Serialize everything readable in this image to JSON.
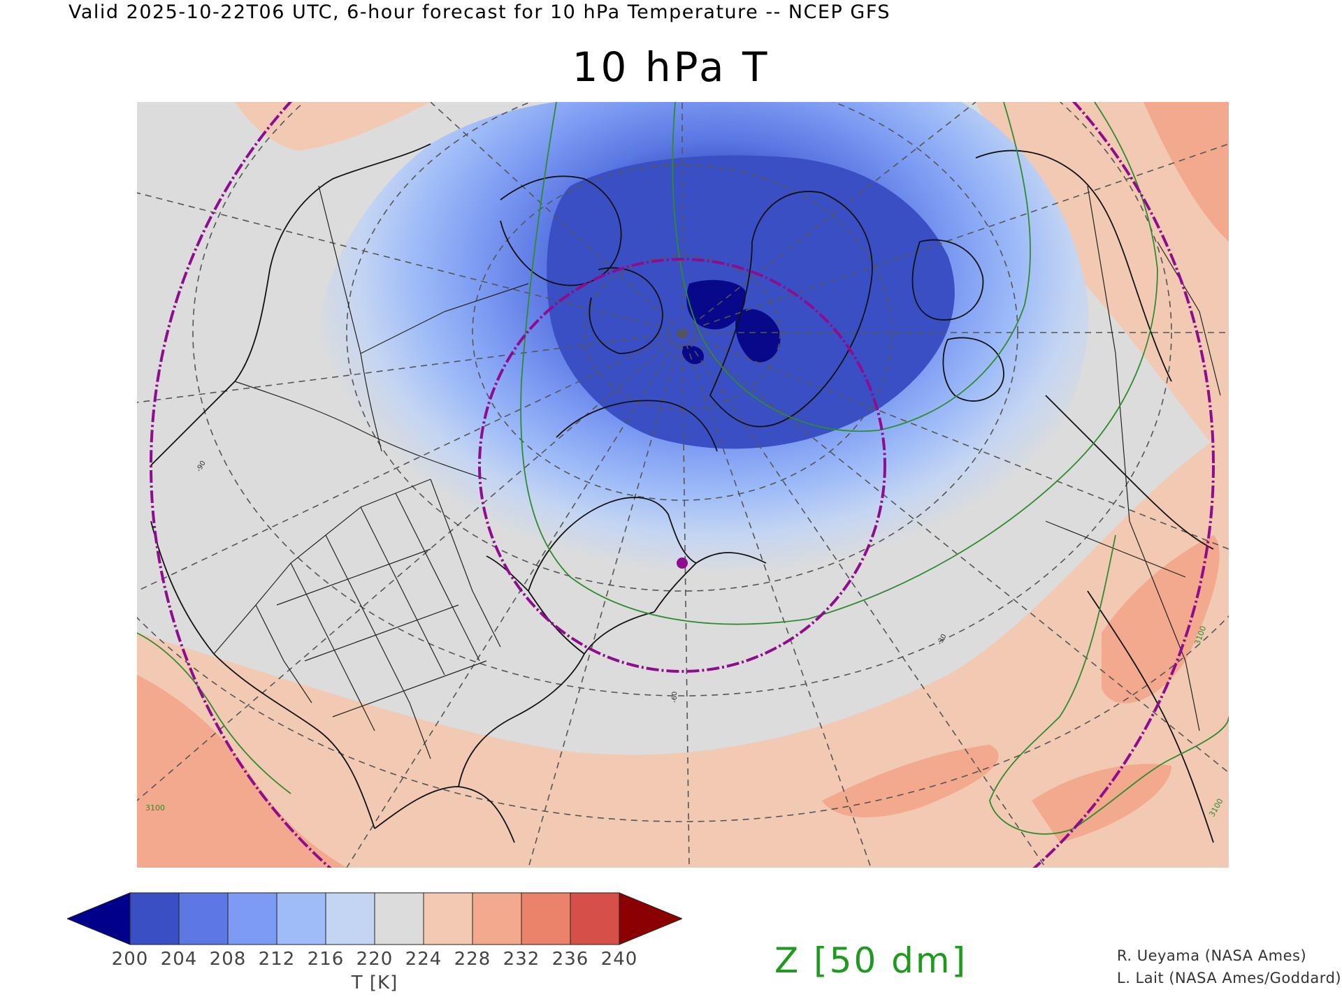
{
  "header": {
    "valid_line": "Valid 2025-10-22T06 UTC, 6-hour forecast for 10 hPa Temperature -- NCEP GFS",
    "title": "10 hPa T"
  },
  "map": {
    "projection": "north polar stereographic",
    "field": "10 hPa temperature (shaded) and geopotential height contours",
    "contour_labels": [
      "3100",
      "3100",
      "3100"
    ],
    "meridian_labels": [
      "-60",
      "-30",
      "-90"
    ],
    "marker": "circle",
    "colors": {
      "coldest": "#08088a",
      "ring_magenta": "#8e0d8e",
      "height_contour": "#2e8b2e"
    }
  },
  "colorbar": {
    "label": "T [K]",
    "ticks": [
      "200",
      "204",
      "208",
      "212",
      "216",
      "220",
      "224",
      "228",
      "232",
      "236",
      "240"
    ],
    "colors": [
      "#00008b",
      "#3a4fc4",
      "#5b78e3",
      "#7c9bf2",
      "#9fbcf8",
      "#c4d5f3",
      "#dcdcdc",
      "#f2c9b3",
      "#f3a98d",
      "#ea836a",
      "#d6504a",
      "#8b0000"
    ]
  },
  "overlay": {
    "z_label": "Z [50 dm]"
  },
  "credits": {
    "line1": "R. Ueyama (NASA Ames)",
    "line2": "L. Lait (NASA Ames/Goddard)"
  }
}
